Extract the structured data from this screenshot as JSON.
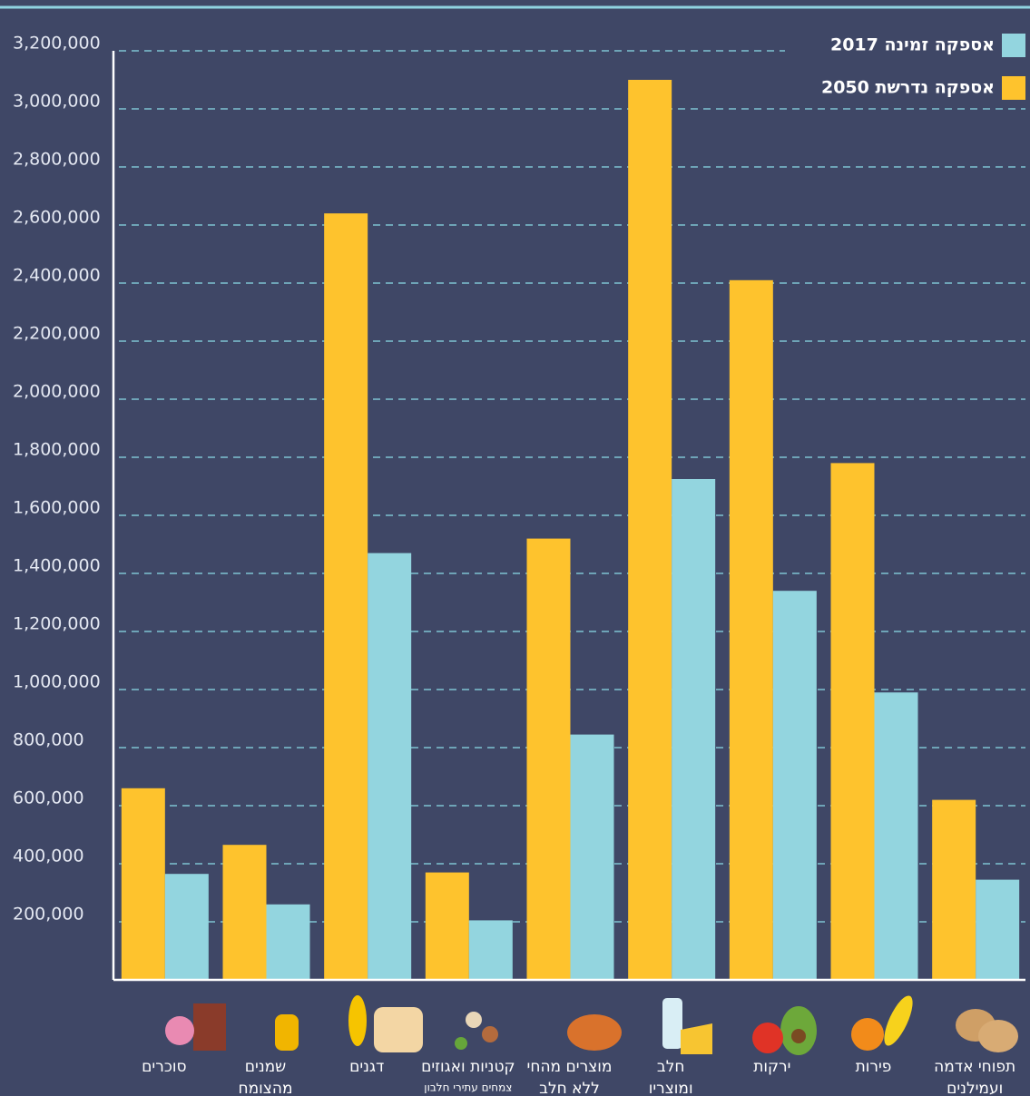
{
  "chart_data": {
    "type": "bar",
    "categories": [
      [
        "סוכרים"
      ],
      [
        "שמנים",
        "מהצומח"
      ],
      [
        "דגנים"
      ],
      [
        "קטניות ואגוזים"
      ],
      [
        "מוצרים מהחי",
        "ללא חלב"
      ],
      [
        "חלב",
        "ומוצריו"
      ],
      [
        "ירקות"
      ],
      [
        "פירות"
      ],
      [
        "תפוחי אדמה",
        "ועמילנים"
      ]
    ],
    "category_subtitles": [
      null,
      null,
      null,
      "צמחים עתירי חלבון",
      null,
      null,
      null,
      null,
      null
    ],
    "series": [
      {
        "name": "אספקה זמינה 2017",
        "color": "#93d5df",
        "values": [
          365000,
          260000,
          1470000,
          205000,
          845000,
          1725000,
          1340000,
          990000,
          345000
        ]
      },
      {
        "name": "אספקה נדרשת 2050",
        "color": "#fec32d",
        "values": [
          660000,
          465000,
          2640000,
          370000,
          1520000,
          3100000,
          2410000,
          1780000,
          620000
        ]
      }
    ],
    "ylim": [
      0,
      3200000
    ],
    "yticks": [
      {
        "value": 200000,
        "label": "200,000"
      },
      {
        "value": 400000,
        "label": "400,000"
      },
      {
        "value": 600000,
        "label": "600,000"
      },
      {
        "value": 800000,
        "label": "800,000"
      },
      {
        "value": 1000000,
        "label": "1,000,000"
      },
      {
        "value": 1200000,
        "label": "1,200,000"
      },
      {
        "value": 1400000,
        "label": "1,400,000"
      },
      {
        "value": 1600000,
        "label": "1,600,000"
      },
      {
        "value": 1800000,
        "label": "1,800,000"
      },
      {
        "value": 2000000,
        "label": "2,000,000"
      },
      {
        "value": 2200000,
        "label": "2,200,000"
      },
      {
        "value": 2400000,
        "label": "2,400,000"
      },
      {
        "value": 2600000,
        "label": "2,600,000"
      },
      {
        "value": 2800000,
        "label": "2,800,000"
      },
      {
        "value": 3000000,
        "label": "3,000,000"
      },
      {
        "value": 3200000,
        "label": "3,200,000"
      }
    ],
    "grid": true,
    "legend": "top-right"
  }
}
